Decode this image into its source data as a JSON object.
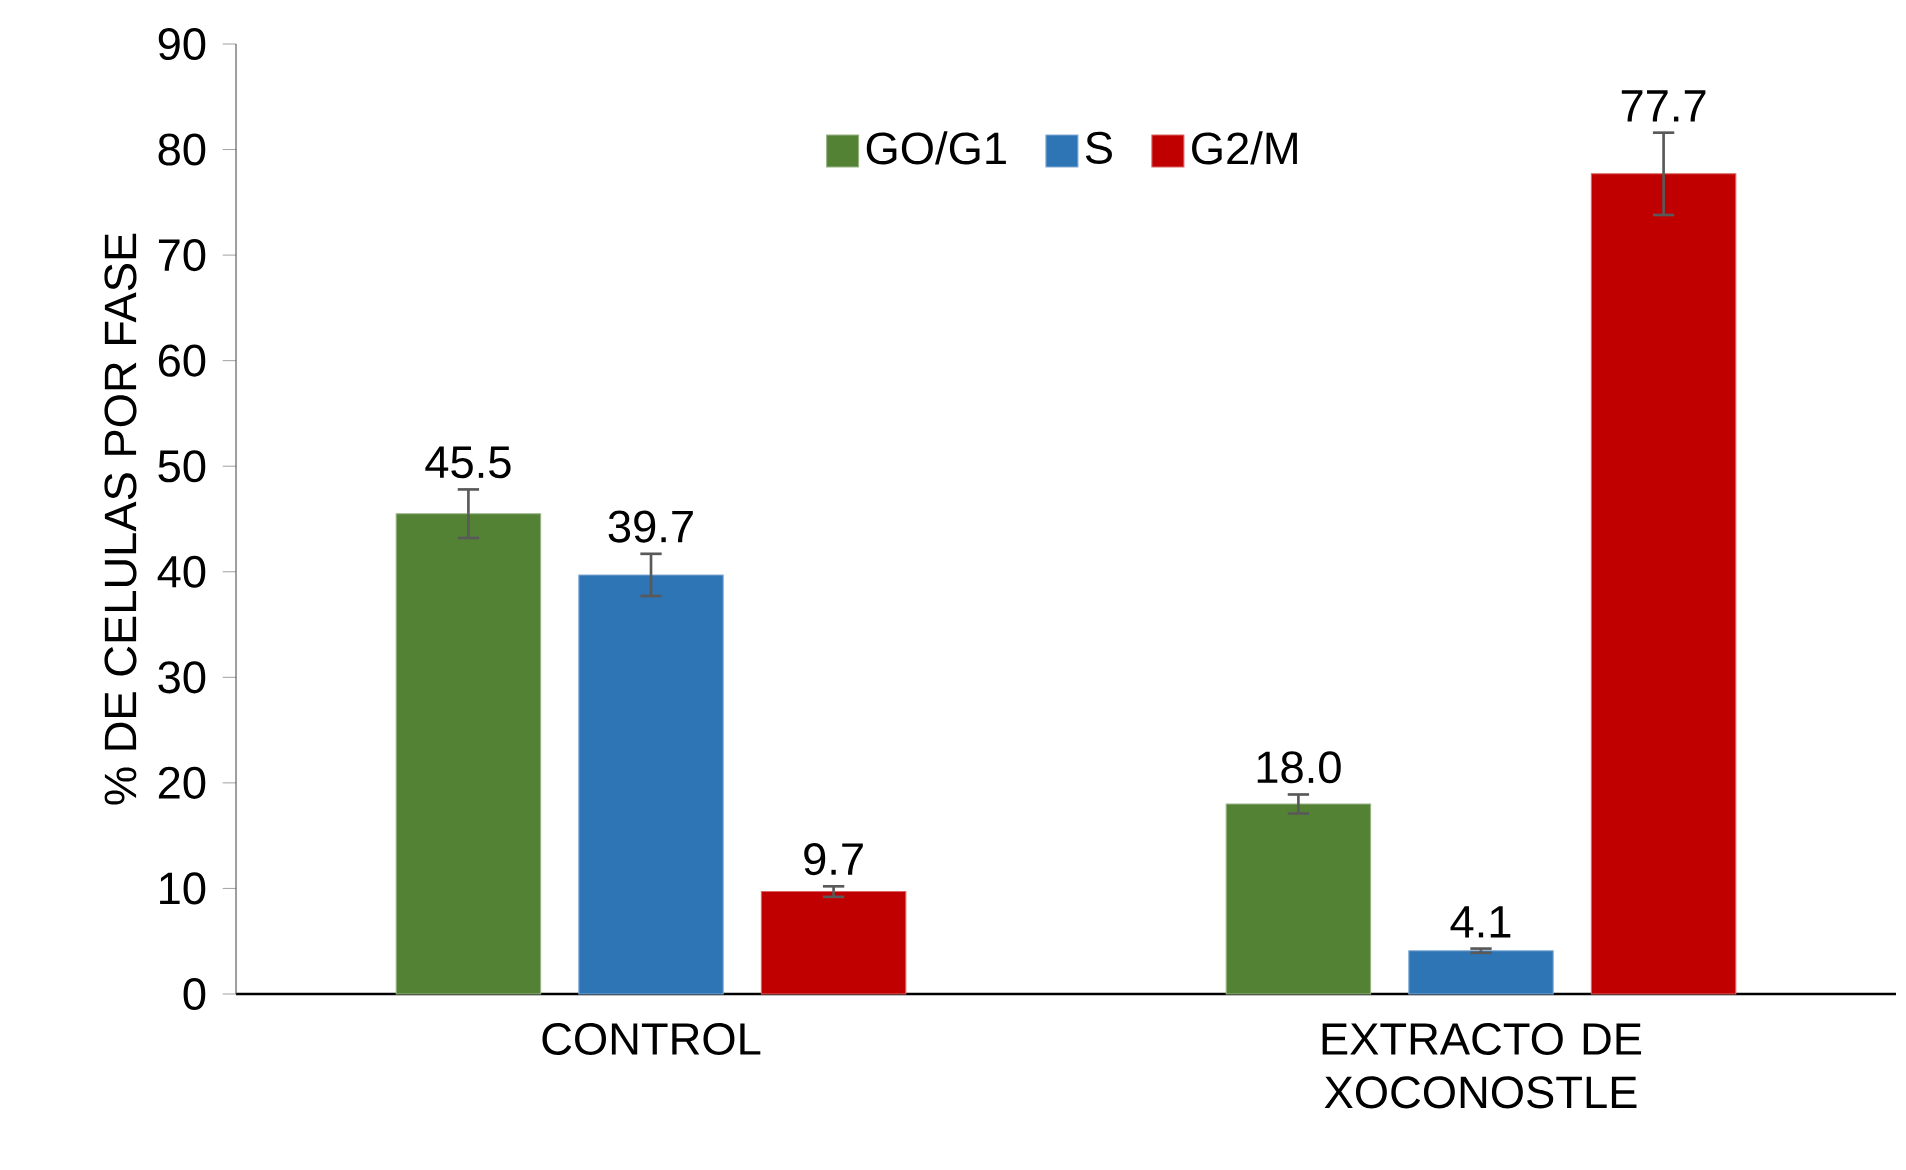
{
  "chart_data": {
    "type": "bar",
    "ylabel": "% DE CELULAS POR FASE",
    "categories": [
      "CONTROL",
      "EXTRACTO DE XOCONOSTLE"
    ],
    "series": [
      {
        "name": "GO/G1",
        "color": "#548235",
        "values": [
          45.5,
          18.0
        ],
        "errors": [
          2.3,
          0.9
        ],
        "value_labels": [
          "45.5",
          "18.0"
        ]
      },
      {
        "name": "S",
        "color": "#2e75b6",
        "values": [
          39.7,
          4.1
        ],
        "errors": [
          2.0,
          0.2
        ],
        "value_labels": [
          "39.7",
          "4.1"
        ]
      },
      {
        "name": "G2/M",
        "color": "#c00000",
        "values": [
          9.7,
          77.7
        ],
        "errors": [
          0.5,
          3.9
        ],
        "value_labels": [
          "9.7",
          "77.7"
        ]
      }
    ],
    "ylim": [
      0,
      90
    ],
    "yticks": [
      0,
      10,
      20,
      30,
      40,
      50,
      60,
      70,
      80,
      90
    ],
    "legend": "top",
    "grid": false
  }
}
